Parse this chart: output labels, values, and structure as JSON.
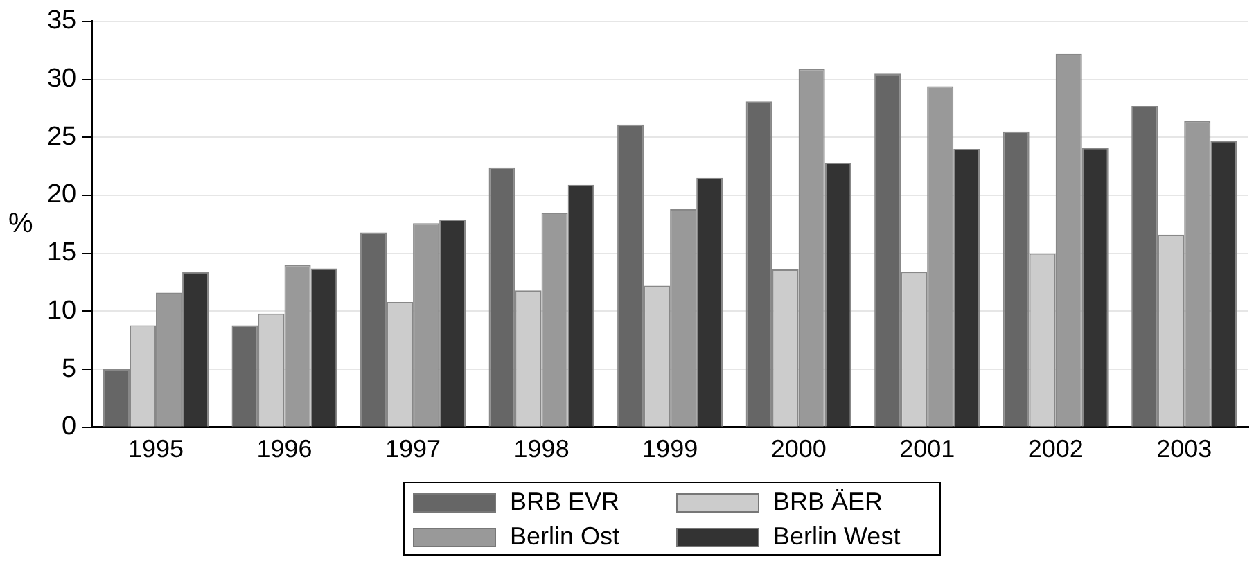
{
  "chart_data": {
    "type": "bar",
    "ylabel": "%",
    "categories": [
      "1995",
      "1996",
      "1997",
      "1998",
      "1999",
      "2000",
      "2001",
      "2002",
      "2003"
    ],
    "series": [
      {
        "name": "BRB EVR",
        "color": "#666666",
        "values": [
          5.0,
          8.8,
          16.8,
          22.4,
          26.1,
          28.1,
          30.5,
          25.5,
          27.7
        ]
      },
      {
        "name": "BRB ÄER",
        "color": "#cccccc",
        "values": [
          8.8,
          9.8,
          10.8,
          11.8,
          12.2,
          13.6,
          13.4,
          15.0,
          16.6
        ]
      },
      {
        "name": "Berlin Ost",
        "color": "#999999",
        "values": [
          11.6,
          14.0,
          17.6,
          18.5,
          18.8,
          30.9,
          29.4,
          32.2,
          26.4
        ]
      },
      {
        "name": "Berlin West",
        "color": "#333333",
        "values": [
          13.4,
          13.7,
          17.9,
          20.9,
          21.5,
          22.8,
          24.0,
          24.1,
          24.7
        ]
      }
    ],
    "ylim": [
      0,
      35
    ],
    "yticks": [
      0,
      5,
      10,
      15,
      20,
      25,
      30,
      35
    ],
    "grid": "y",
    "legend": "bottom"
  }
}
